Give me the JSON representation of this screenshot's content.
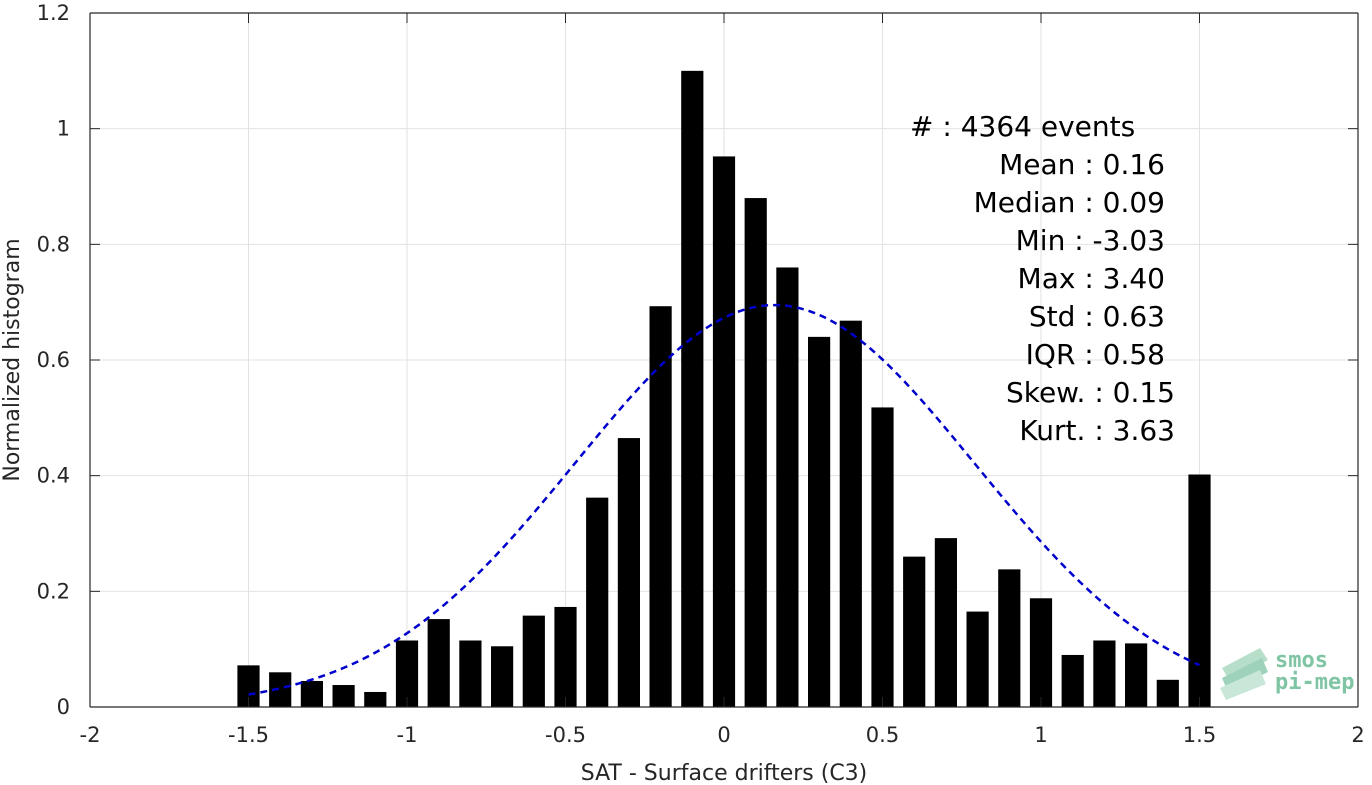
{
  "chart_data": {
    "type": "bar",
    "xlabel": "SAT - Surface drifters (C3)",
    "ylabel": "Normalized histogram",
    "xlim": [
      -2,
      2
    ],
    "ylim": [
      0,
      1.2
    ],
    "xticks": [
      -2,
      -1.5,
      -1,
      -0.5,
      0,
      0.5,
      1,
      1.5,
      2
    ],
    "xtick_labels": [
      "-2",
      "-1.5",
      "-1",
      "-0.5",
      "0",
      "0.5",
      "1",
      "1.5",
      "2"
    ],
    "yticks": [
      0,
      0.2,
      0.4,
      0.6,
      0.8,
      1,
      1.2
    ],
    "ytick_labels": [
      "0",
      "0.2",
      "0.4",
      "0.6",
      "0.8",
      "1",
      "1.2"
    ],
    "grid": true,
    "bar_color": "#000000",
    "bar_centers": [
      -1.5,
      -1.4,
      -1.3,
      -1.2,
      -1.1,
      -1.0,
      -0.9,
      -0.8,
      -0.7,
      -0.6,
      -0.5,
      -0.4,
      -0.3,
      -0.2,
      -0.1,
      0.0,
      0.1,
      0.2,
      0.3,
      0.4,
      0.5,
      0.6,
      0.7,
      0.8,
      0.9,
      1.0,
      1.1,
      1.2,
      1.3,
      1.4,
      1.5
    ],
    "bar_width": 0.07,
    "values": [
      0.072,
      0.06,
      0.045,
      0.038,
      0.026,
      0.115,
      0.152,
      0.115,
      0.105,
      0.158,
      0.173,
      0.362,
      0.465,
      0.693,
      1.1,
      0.952,
      0.88,
      0.76,
      0.64,
      0.668,
      0.518,
      0.26,
      0.292,
      0.165,
      0.238,
      0.188,
      0.09,
      0.115,
      0.11,
      0.047,
      0.402
    ],
    "fit_curve": {
      "type": "gaussian",
      "mean": 0.16,
      "std": 0.63,
      "x_range": [
        -1.5,
        1.5
      ],
      "peak": 0.695,
      "color": "#0000cc",
      "style": "dashed"
    },
    "annotations": [
      "#  : 4364 events",
      "Mean : 0.16",
      "Median : 0.09",
      "Min : -3.03",
      "Max : 3.40",
      "Std : 0.63",
      "IQR : 0.58",
      "Skew. : 0.15",
      "Kurt. : 3.63"
    ]
  },
  "logo": {
    "line1": "smos",
    "line2": "pi-mep",
    "color": "#7fc4a3"
  }
}
